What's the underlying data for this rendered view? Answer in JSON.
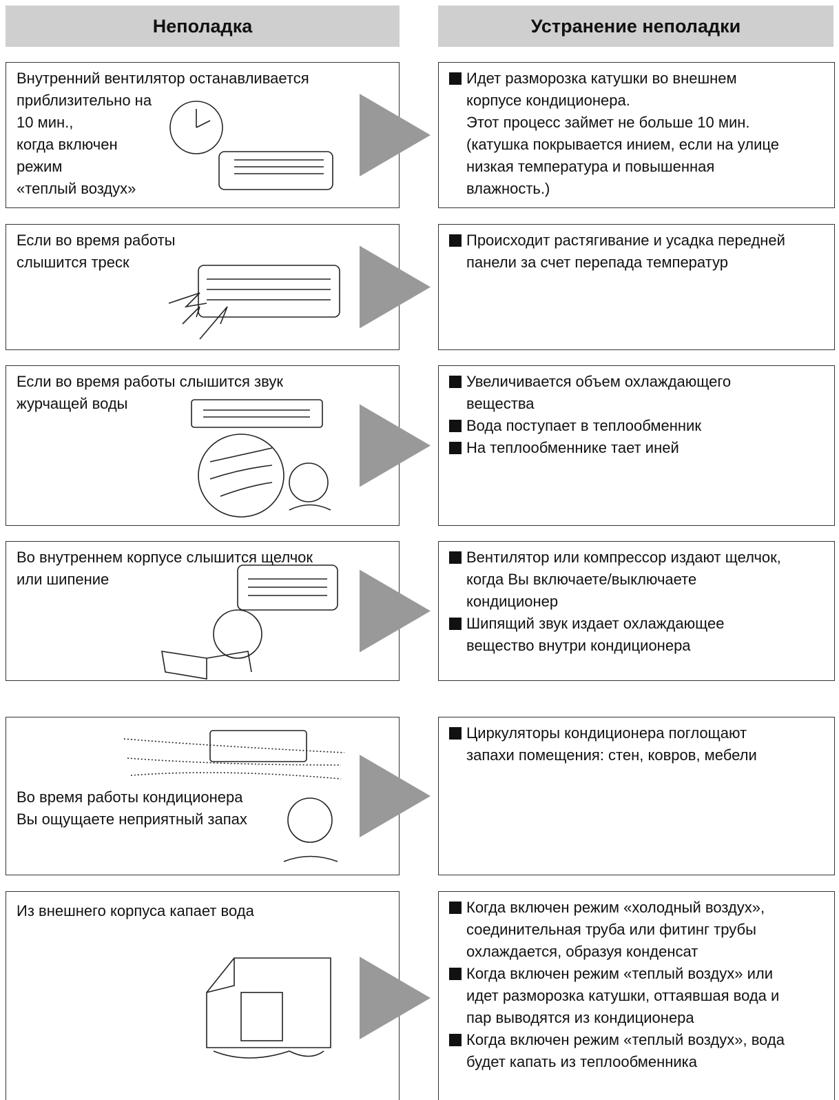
{
  "header": {
    "left": "Неполадка",
    "right": "Устранение неполадки"
  },
  "rows": [
    {
      "problem": [
        "Внутренний вентилятор останавливается",
        "приблизительно на",
        "10 мин.,",
        "когда включен",
        "режим",
        "«теплый воздух»"
      ],
      "solution": [
        [
          "Идет разморозка катушки во внешнем",
          "корпусе кондиционера.",
          "Этот процесс займет не больше 10 мин.",
          "(катушка покрывается инием, если на улице",
          "низкая температура и повышенная",
          "влажность.)"
        ]
      ]
    },
    {
      "problem": [
        "Если во время работы",
        "слышится треск"
      ],
      "solution": [
        [
          "Происходит растягивание и усадка передней",
          "панели за счет перепада температур"
        ]
      ]
    },
    {
      "problem": [
        "Если во время работы слышится звук",
        "журчащей воды"
      ],
      "solution": [
        [
          "Увеличивается объем охлаждающего",
          "вещества"
        ],
        [
          "Вода поступает в теплообменник"
        ],
        [
          "На теплообменнике тает иней"
        ]
      ]
    },
    {
      "problem": [
        "Во внутреннем корпусе слышится щелчок",
        "или шипение"
      ],
      "solution": [
        [
          "Вентилятор или компрессор издают щелчок,",
          "когда Вы включаете/выключаете",
          "кондиционер"
        ],
        [
          "Шипящий звук издает охлаждающее",
          "вещество внутри кондиционера"
        ]
      ]
    },
    {
      "problem": [
        "Во время работы кондиционера",
        "Вы ощущаете неприятный запах"
      ],
      "solution": [
        [
          "Циркуляторы кондиционера поглощают",
          "запахи помещения: стен, ковров, мебели"
        ]
      ]
    },
    {
      "problem": [
        "Из внешнего корпуса капает вода"
      ],
      "solution": [
        [
          "Когда включен режим «холодный воздух»,",
          "соединительная труба или фитинг  трубы",
          "охлаждается, образуя конденсат"
        ],
        [
          "Когда включен режим «теплый воздух» или",
          "идет разморозка катушки, оттаявшая вода и",
          "пар выводятся из кондиционера"
        ],
        [
          "Когда включен режим «теплый воздух», вода",
          "будет капать из теплообменника"
        ]
      ]
    }
  ]
}
